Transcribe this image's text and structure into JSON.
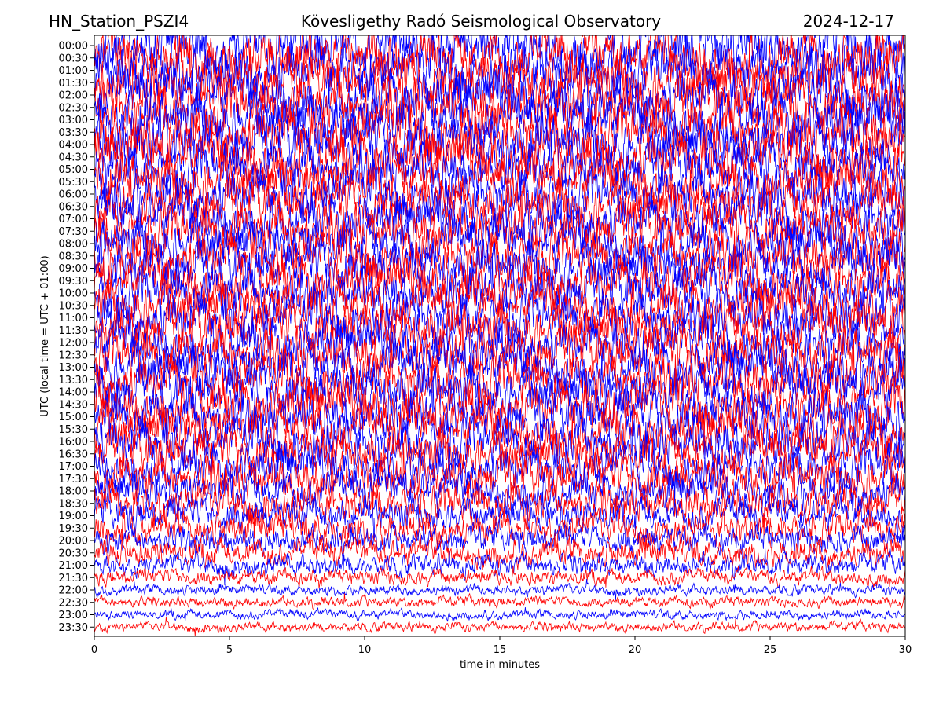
{
  "header": {
    "station": "HN_Station_PSZI4",
    "observatory": "Kövesligethy Radó Seismological Observatory",
    "date": "2024-12-17"
  },
  "chart_data": {
    "type": "line",
    "title": "Kövesligethy Radó Seismological Observatory",
    "xlabel": "time in minutes",
    "ylabel": "UTC (local time = UTC + 01:00)",
    "xlim": [
      0,
      30
    ],
    "x_ticks": [
      "0",
      "5",
      "10",
      "15",
      "20",
      "25",
      "30"
    ],
    "x_tick_values": [
      0,
      5,
      10,
      15,
      20,
      25,
      30
    ],
    "y_ticks": [
      "00:00",
      "00:30",
      "01:00",
      "01:30",
      "02:00",
      "02:30",
      "03:00",
      "03:30",
      "04:00",
      "04:30",
      "05:00",
      "05:30",
      "06:00",
      "06:30",
      "07:00",
      "07:30",
      "08:00",
      "08:30",
      "09:00",
      "09:30",
      "10:00",
      "10:30",
      "11:00",
      "11:30",
      "12:00",
      "12:30",
      "13:00",
      "13:30",
      "14:00",
      "14:30",
      "15:00",
      "15:30",
      "16:00",
      "16:30",
      "17:00",
      "17:30",
      "18:00",
      "18:30",
      "19:00",
      "19:30",
      "20:00",
      "20:30",
      "21:00",
      "21:30",
      "22:00",
      "22:30",
      "23:00",
      "23:30"
    ],
    "trace_colors": [
      "#0000ff",
      "#ff0000"
    ],
    "trace_amplitude_level": [
      5,
      5,
      5,
      5,
      5,
      5,
      5,
      5,
      5,
      5,
      4.5,
      4.5,
      4.5,
      4.5,
      4.5,
      4.5,
      4.5,
      4.5,
      4.5,
      4.5,
      4.5,
      4.5,
      4.5,
      4.5,
      4.5,
      4.5,
      4.5,
      4.5,
      4.5,
      4.5,
      4.5,
      4.5,
      4.5,
      4,
      4,
      4,
      3.5,
      3.5,
      3,
      3,
      2.5,
      2.5,
      2,
      1.5,
      1,
      1,
      0.9,
      0.9
    ],
    "grid": false,
    "legend": "none"
  }
}
